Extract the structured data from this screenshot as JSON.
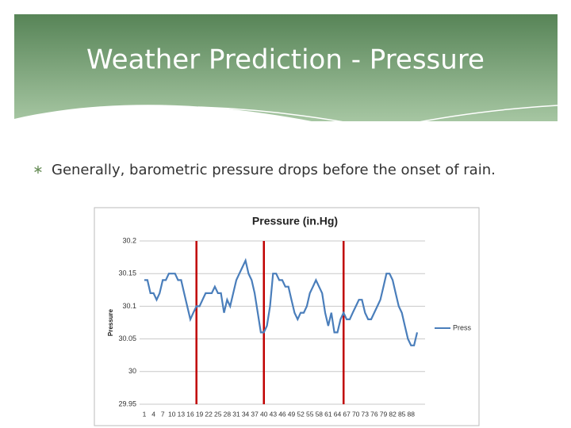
{
  "slide": {
    "title": "Weather Prediction - Pressure",
    "bullet": "Generally, barometric pressure drops before the onset of rain."
  },
  "chart_data": {
    "type": "line",
    "title": "Pressure (in.Hg)",
    "y_label": "Pressure",
    "categories": [
      1,
      null,
      null,
      4,
      null,
      null,
      7,
      null,
      null,
      10,
      null,
      null,
      13,
      null,
      null,
      16,
      null,
      null,
      19,
      null,
      null,
      22,
      null,
      null,
      25,
      null,
      null,
      28,
      null,
      null,
      31,
      null,
      null,
      34,
      null,
      null,
      37,
      null,
      null,
      40,
      null,
      null,
      43,
      null,
      null,
      46,
      null,
      null,
      49,
      null,
      null,
      52,
      null,
      null,
      55,
      null,
      null,
      58,
      null,
      null,
      61,
      null,
      null,
      64,
      null,
      null,
      67,
      null,
      null,
      70,
      null,
      null,
      73,
      null,
      null,
      76,
      null,
      null,
      79,
      null,
      null,
      82,
      null,
      null,
      85,
      null,
      null,
      88,
      null,
      null
    ],
    "series": [
      {
        "name": "Press",
        "color": "#4a7ebb",
        "values": [
          30.14,
          30.14,
          30.12,
          30.12,
          30.11,
          30.12,
          30.14,
          30.14,
          30.15,
          30.15,
          30.15,
          30.14,
          30.14,
          30.12,
          30.1,
          30.08,
          30.09,
          30.1,
          30.1,
          30.11,
          30.12,
          30.12,
          30.12,
          30.13,
          30.12,
          30.12,
          30.09,
          30.11,
          30.1,
          30.12,
          30.14,
          30.15,
          30.16,
          30.17,
          30.15,
          30.14,
          30.12,
          30.09,
          30.06,
          30.06,
          30.07,
          30.1,
          30.15,
          30.15,
          30.14,
          30.14,
          30.13,
          30.13,
          30.11,
          30.09,
          30.08,
          30.09,
          30.09,
          30.1,
          30.12,
          30.13,
          30.14,
          30.13,
          30.12,
          30.09,
          30.07,
          30.09,
          30.06,
          30.06,
          30.08,
          30.09,
          30.08,
          30.08,
          30.09,
          30.1,
          30.11,
          30.11,
          30.09,
          30.08,
          30.08,
          30.09,
          30.1,
          30.11,
          30.13,
          30.15,
          30.15,
          30.14,
          30.12,
          30.1,
          30.09,
          30.07,
          30.05,
          30.04,
          30.04,
          30.06
        ]
      }
    ],
    "ylim": [
      29.95,
      30.2
    ],
    "yticks": [
      29.95,
      30,
      30.05,
      30.1,
      30.15,
      30.2
    ],
    "grid": true,
    "vlines": [
      {
        "x": 18,
        "color": "#c00000"
      },
      {
        "x": 40,
        "color": "#c00000"
      },
      {
        "x": 66,
        "color": "#c00000"
      }
    ],
    "legend": "right"
  }
}
